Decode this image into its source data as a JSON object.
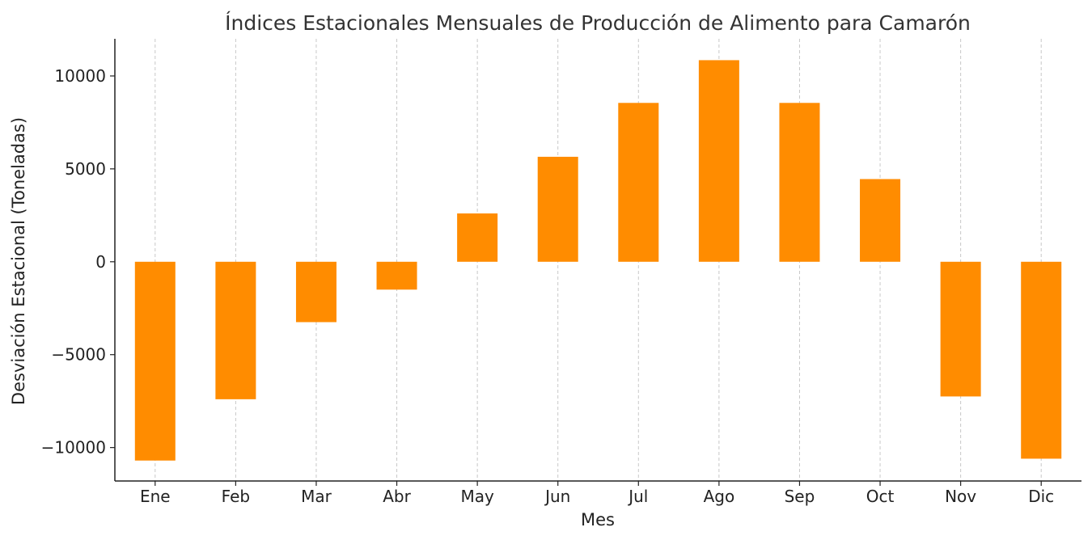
{
  "chart_data": {
    "type": "bar",
    "title": "Índices Estacionales Mensuales de Producción de Alimento para Camarón",
    "xlabel": "Mes",
    "ylabel": "Desviación Estacional (Toneladas)",
    "categories": [
      "Ene",
      "Feb",
      "Mar",
      "Abr",
      "May",
      "Jun",
      "Jul",
      "Ago",
      "Sep",
      "Oct",
      "Nov",
      "Dic"
    ],
    "values": [
      -10700,
      -7400,
      -3250,
      -1500,
      2600,
      5650,
      8550,
      10850,
      8550,
      4450,
      -7250,
      -10600
    ],
    "ylim": [
      -11800,
      12000
    ],
    "yticks": [
      {
        "value": 10000,
        "label": "10000"
      },
      {
        "value": 5000,
        "label": "5000"
      },
      {
        "value": 0,
        "label": "0"
      },
      {
        "value": -5000,
        "label": "−5000"
      },
      {
        "value": -10000,
        "label": "−10000"
      }
    ],
    "grid": "vertical-dashed",
    "bar_color": "#ff8c00",
    "grid_color": "#c8c8c8",
    "axis_color": "#222222"
  }
}
